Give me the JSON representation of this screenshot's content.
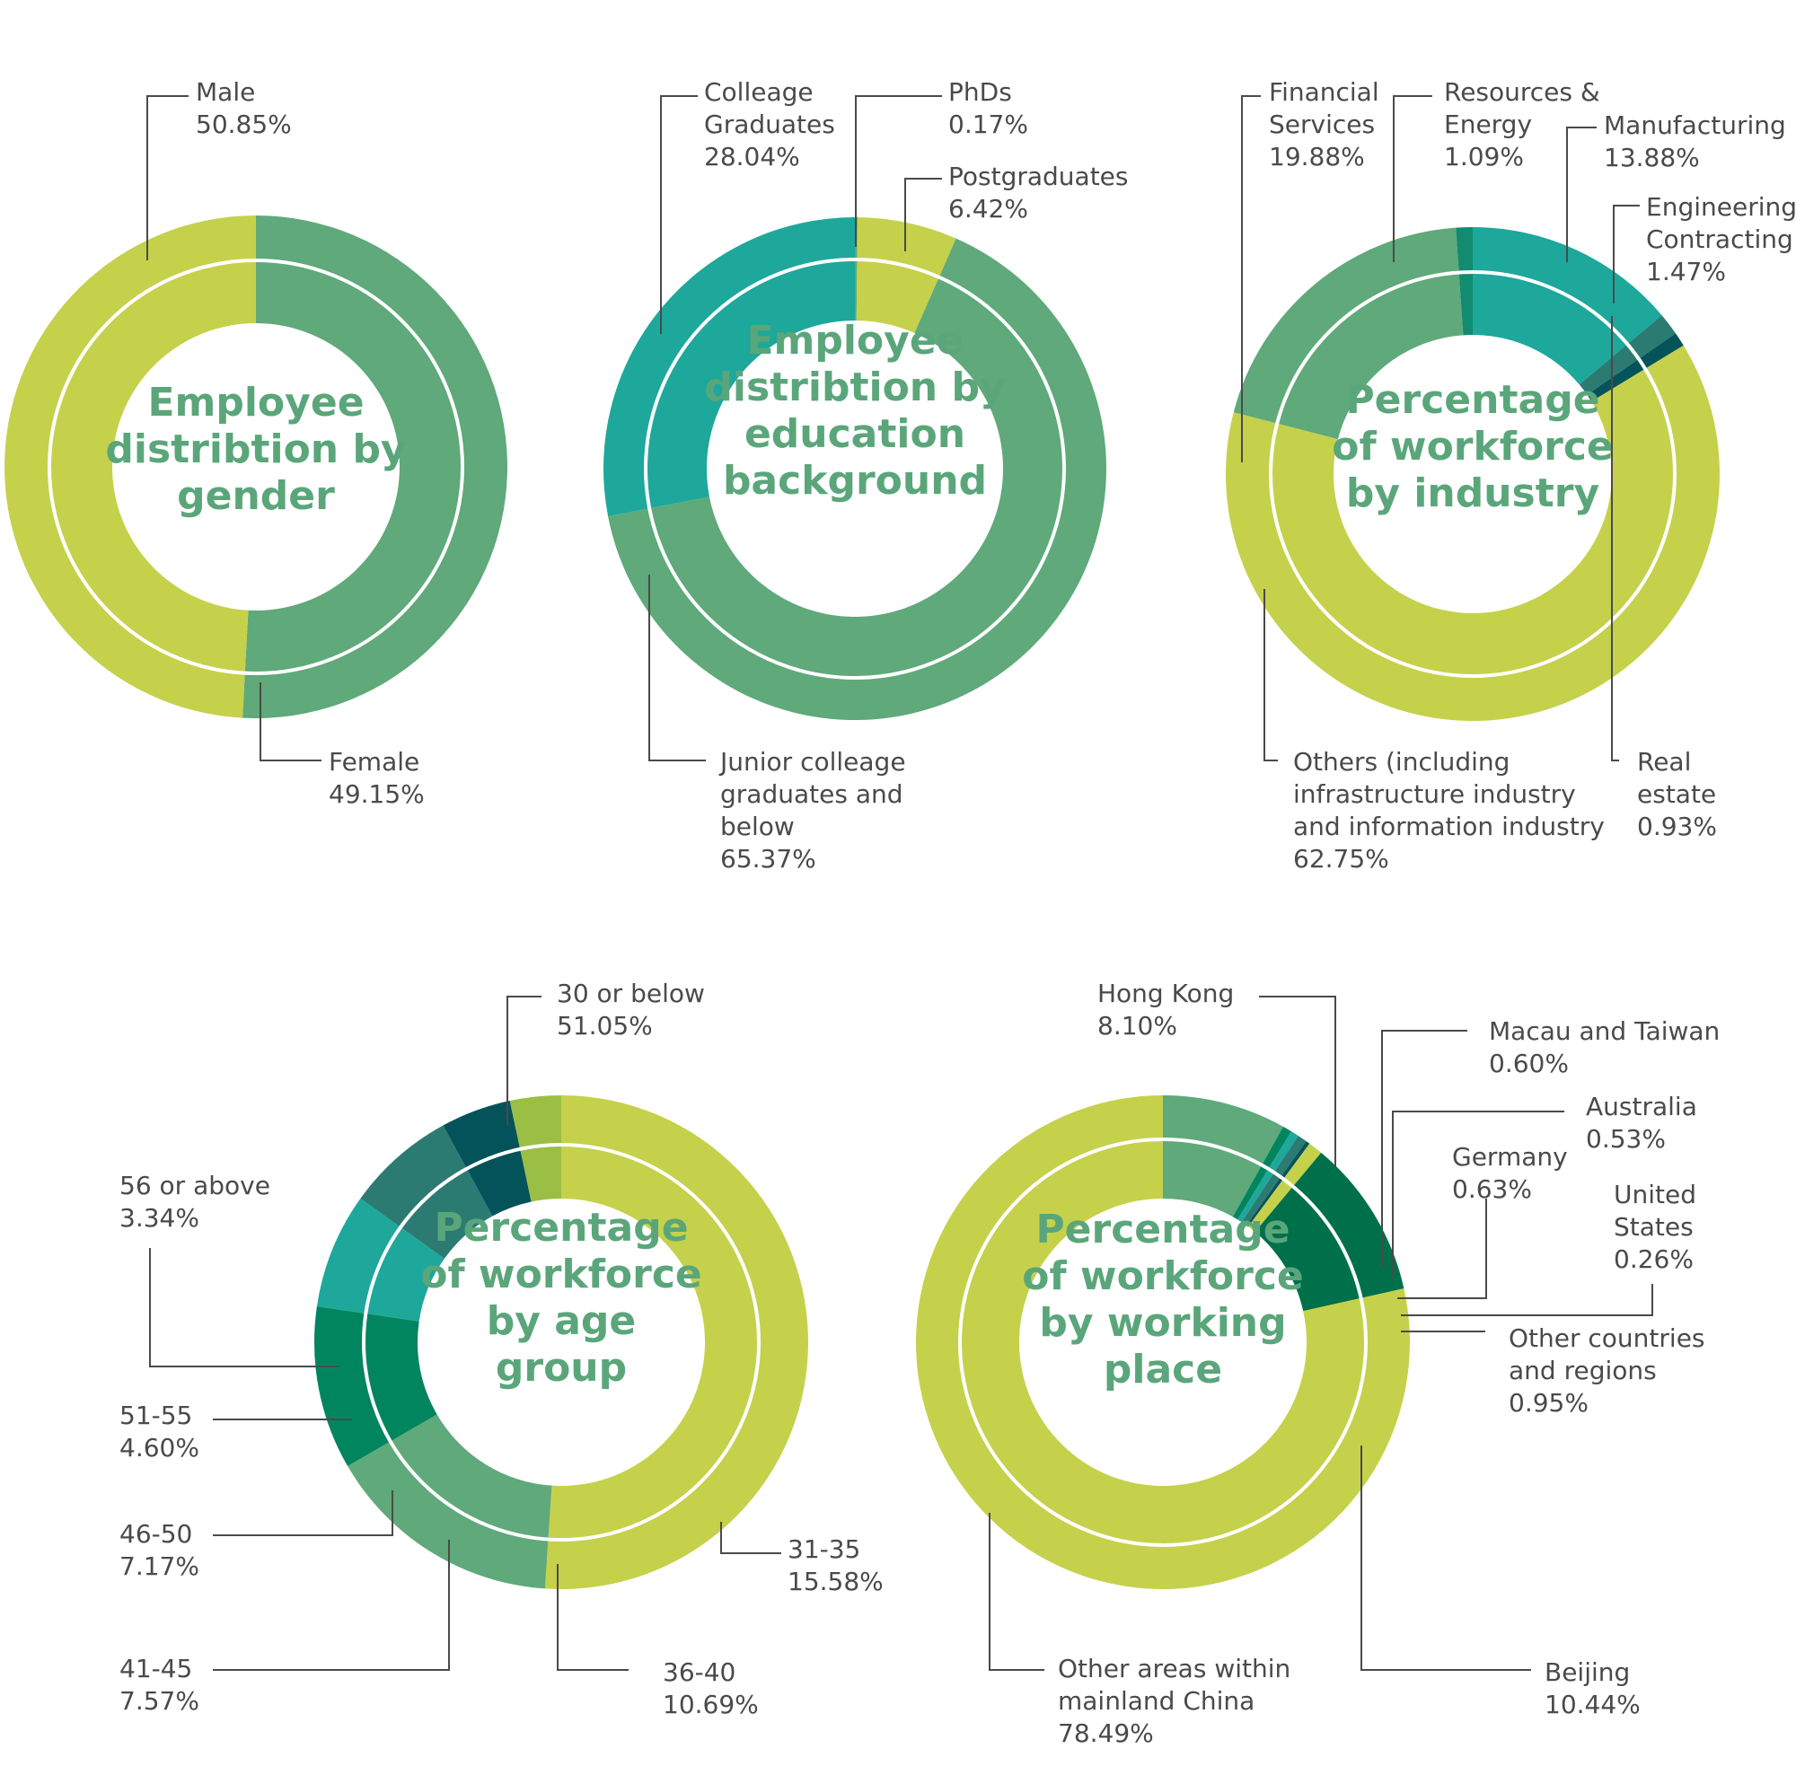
{
  "colors": {
    "lime": "#c5d14b",
    "green": "#5fa97a",
    "teal": "#1da89b",
    "dark_teal": "#2c7b73",
    "deep_teal": "#05535a",
    "dark_green": "#00704a",
    "mid_green": "#00855f",
    "olive": "#9bbe45",
    "sea_green": "#138b71",
    "title_green": "#5aa67a",
    "label_grey": "#4a4a4a"
  },
  "chart_data": [
    {
      "type": "pie",
      "title": [
        "Employee",
        "distribtion by",
        "gender"
      ],
      "unit": "%",
      "slices": [
        {
          "name": "Male",
          "value": 50.85,
          "label_lines": [
            "Male",
            "50.85%"
          ],
          "color": "green"
        },
        {
          "name": "Female",
          "value": 49.15,
          "label_lines": [
            "Female",
            "49.15%"
          ],
          "color": "lime"
        }
      ]
    },
    {
      "type": "pie",
      "title": [
        "Employee",
        "distribtion by",
        "education",
        "background"
      ],
      "unit": "%",
      "slices": [
        {
          "name": "PhDs",
          "value": 0.17,
          "label_lines": [
            "PhDs",
            "0.17%"
          ],
          "color": "green"
        },
        {
          "name": "Postgraduates",
          "value": 6.42,
          "label_lines": [
            "Postgraduates",
            "6.42%"
          ],
          "color": "lime"
        },
        {
          "name": "Junior colleage graduates and below",
          "value": 65.37,
          "label_lines": [
            "Junior colleage",
            "graduates and",
            "below",
            "65.37%"
          ],
          "color": "green"
        },
        {
          "name": "Colleage Graduates",
          "value": 28.04,
          "label_lines": [
            "Colleage",
            "Graduates",
            "28.04%"
          ],
          "color": "teal"
        }
      ]
    },
    {
      "type": "pie",
      "title": [
        "Percentage",
        "of workforce",
        "by industry"
      ],
      "unit": "%",
      "slices": [
        {
          "name": "Manufacturing",
          "value": 13.88,
          "label_lines": [
            "Manufacturing",
            "13.88%"
          ],
          "color": "teal"
        },
        {
          "name": "Engineering Contracting",
          "value": 1.47,
          "label_lines": [
            "Engineering",
            "Contracting",
            "1.47%"
          ],
          "color": "dark_teal"
        },
        {
          "name": "Real estate",
          "value": 0.93,
          "label_lines": [
            "Real",
            "estate",
            "0.93%"
          ],
          "color": "deep_teal"
        },
        {
          "name": "Others (including infrastructure industry and information industry",
          "value": 62.75,
          "label_lines": [
            "Others (including",
            "infrastructure industry",
            "and information industry",
            "62.75%"
          ],
          "color": "lime"
        },
        {
          "name": "Financial Services",
          "value": 19.88,
          "label_lines": [
            "Financial",
            "Services",
            "19.88%"
          ],
          "color": "green"
        },
        {
          "name": "Resources & Energy",
          "value": 1.09,
          "label_lines": [
            "Resources &",
            "Energy",
            "1.09%"
          ],
          "color": "sea_green"
        }
      ]
    },
    {
      "type": "pie",
      "title": [
        "Percentage",
        "of workforce",
        "by age",
        "group"
      ],
      "unit": "%",
      "slices": [
        {
          "name": "30 or below",
          "value": 51.05,
          "label_lines": [
            "30 or below",
            "51.05%"
          ],
          "color": "lime"
        },
        {
          "name": "31-35",
          "value": 15.58,
          "label_lines": [
            "31-35",
            "15.58%"
          ],
          "color": "green"
        },
        {
          "name": "36-40",
          "value": 10.69,
          "label_lines": [
            "36-40",
            "10.69%"
          ],
          "color": "mid_green"
        },
        {
          "name": "41-45",
          "value": 7.57,
          "label_lines": [
            "41-45",
            "7.57%"
          ],
          "color": "teal"
        },
        {
          "name": "46-50",
          "value": 7.17,
          "label_lines": [
            "46-50",
            "7.17%"
          ],
          "color": "dark_teal"
        },
        {
          "name": "51-55",
          "value": 4.6,
          "label_lines": [
            "51-55",
            "4.60%"
          ],
          "color": "deep_teal"
        },
        {
          "name": "56 or above",
          "value": 3.34,
          "label_lines": [
            "56 or above",
            "3.34%"
          ],
          "color": "olive"
        }
      ]
    },
    {
      "type": "pie",
      "title": [
        "Percentage",
        "of workforce",
        "by working",
        "place"
      ],
      "unit": "%",
      "slices": [
        {
          "name": "Hong Kong",
          "value": 8.1,
          "label_lines": [
            "Hong Kong",
            "8.10%"
          ],
          "color": "green"
        },
        {
          "name": "Macau and Taiwan",
          "value": 0.6,
          "label_lines": [
            "Macau and Taiwan",
            "0.60%"
          ],
          "color": "mid_green"
        },
        {
          "name": "Australia",
          "value": 0.53,
          "label_lines": [
            "Australia",
            "0.53%"
          ],
          "color": "teal"
        },
        {
          "name": "Germany",
          "value": 0.63,
          "label_lines": [
            "Germany",
            "0.63%"
          ],
          "color": "dark_teal"
        },
        {
          "name": "United States",
          "value": 0.26,
          "label_lines": [
            "United",
            "States",
            "0.26%"
          ],
          "color": "deep_teal"
        },
        {
          "name": "Other countries and regions",
          "value": 0.95,
          "label_lines": [
            "Other countries",
            "and regions",
            "0.95%"
          ],
          "color": "lime"
        },
        {
          "name": "Beijing",
          "value": 10.44,
          "label_lines": [
            "Beijing",
            "10.44%"
          ],
          "color": "dark_green"
        },
        {
          "name": "Other areas within mainland China",
          "value": 78.49,
          "label_lines": [
            "Other areas within",
            "mainland China",
            "78.49%"
          ],
          "color": "lime"
        }
      ]
    }
  ]
}
